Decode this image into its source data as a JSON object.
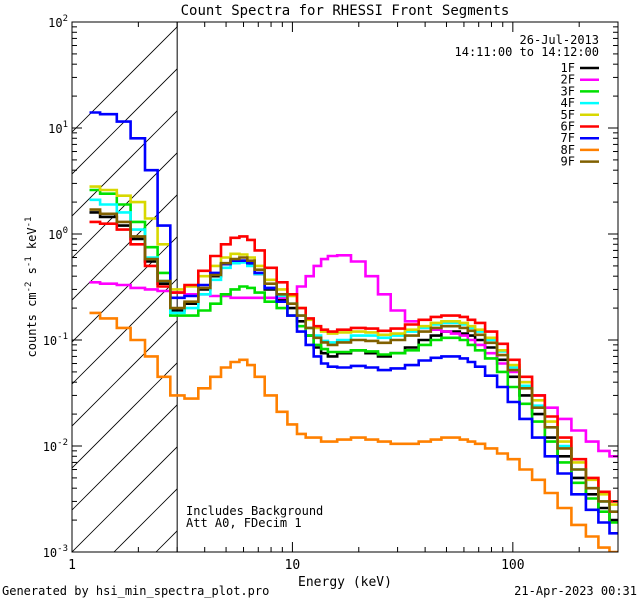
{
  "chart_data": {
    "type": "line",
    "title": "Count Spectra for RHESSI Front Segments",
    "xlabel": "Energy (keV)",
    "ylabel": "counts cm^-2 s^-1 keV^-1",
    "ylabel_parts": {
      "a": "counts cm",
      "b": "-2",
      "c": " s",
      "d": "-1",
      "e": " keV",
      "f": "-1"
    },
    "xscale": "log",
    "yscale": "log",
    "xlim": [
      1,
      300
    ],
    "ylim": [
      0.001,
      100
    ],
    "x_ticks": [
      {
        "value": 1,
        "label": "1"
      },
      {
        "value": 10,
        "label": "10"
      },
      {
        "value": 100,
        "label": "100"
      }
    ],
    "y_ticks": [
      {
        "value": 0.001,
        "base": "10",
        "exp": "-3"
      },
      {
        "value": 0.01,
        "base": "10",
        "exp": "-2"
      },
      {
        "value": 0.1,
        "base": "10",
        "exp": "-1"
      },
      {
        "value": 1,
        "base": "10",
        "exp": "0"
      },
      {
        "value": 10,
        "base": "10",
        "exp": "1"
      },
      {
        "value": 100,
        "base": "10",
        "exp": "2"
      }
    ],
    "date": "26-Jul-2013",
    "time_range": "14:11:00 to 14:12:00",
    "hatched_region": [
      1,
      3
    ],
    "annotations": [
      "Includes Background",
      "Att A0, FDecim 1"
    ],
    "legend_position": "top-right",
    "energies": [
      1.2,
      1.5,
      1.7,
      2.0,
      2.3,
      2.6,
      3.0,
      3.5,
      4.0,
      4.5,
      5.0,
      5.5,
      6.0,
      6.5,
      7.0,
      8.0,
      9.0,
      10.0,
      11.0,
      12.0,
      13.0,
      14.0,
      15.0,
      17.0,
      20.0,
      23.0,
      26.0,
      30.0,
      35.0,
      40.0,
      45.0,
      50.0,
      55.0,
      60.0,
      65.0,
      70.0,
      80.0,
      90.0,
      100.0,
      115.0,
      130.0,
      150.0,
      170.0,
      200.0,
      230.0,
      260.0,
      290.0
    ],
    "series": [
      {
        "name": "1F",
        "color": "#000000",
        "values": [
          1.6,
          1.45,
          1.2,
          0.9,
          0.55,
          0.34,
          0.19,
          0.22,
          0.3,
          0.4,
          0.52,
          0.56,
          0.56,
          0.52,
          0.42,
          0.3,
          0.24,
          0.2,
          0.15,
          0.11,
          0.085,
          0.075,
          0.07,
          0.075,
          0.08,
          0.075,
          0.07,
          0.075,
          0.085,
          0.1,
          0.11,
          0.12,
          0.12,
          0.115,
          0.11,
          0.1,
          0.085,
          0.065,
          0.045,
          0.03,
          0.02,
          0.012,
          0.008,
          0.005,
          0.0035,
          0.0026,
          0.002
        ]
      },
      {
        "name": "2F",
        "color": "#ff00ff",
        "values": [
          0.35,
          0.34,
          0.33,
          0.31,
          0.3,
          0.29,
          0.28,
          0.27,
          0.27,
          0.26,
          0.26,
          0.25,
          0.25,
          0.25,
          0.25,
          0.25,
          0.25,
          0.27,
          0.32,
          0.4,
          0.5,
          0.58,
          0.62,
          0.63,
          0.55,
          0.4,
          0.27,
          0.19,
          0.15,
          0.13,
          0.125,
          0.12,
          0.115,
          0.11,
          0.1,
          0.09,
          0.075,
          0.06,
          0.05,
          0.04,
          0.03,
          0.023,
          0.018,
          0.014,
          0.011,
          0.009,
          0.008
        ]
      },
      {
        "name": "3F",
        "color": "#00e000",
        "values": [
          2.6,
          2.4,
          1.9,
          1.3,
          0.75,
          0.43,
          0.17,
          0.17,
          0.19,
          0.22,
          0.27,
          0.3,
          0.32,
          0.31,
          0.28,
          0.23,
          0.2,
          0.17,
          0.135,
          0.11,
          0.09,
          0.082,
          0.077,
          0.077,
          0.08,
          0.078,
          0.073,
          0.075,
          0.08,
          0.09,
          0.1,
          0.105,
          0.105,
          0.1,
          0.09,
          0.08,
          0.067,
          0.05,
          0.036,
          0.025,
          0.017,
          0.011,
          0.007,
          0.0045,
          0.0032,
          0.0024,
          0.0019
        ]
      },
      {
        "name": "4F",
        "color": "#00ffff",
        "values": [
          2.1,
          1.9,
          1.6,
          1.1,
          0.6,
          0.36,
          0.18,
          0.2,
          0.27,
          0.37,
          0.48,
          0.53,
          0.54,
          0.5,
          0.42,
          0.31,
          0.26,
          0.22,
          0.17,
          0.13,
          0.11,
          0.098,
          0.095,
          0.1,
          0.11,
          0.11,
          0.105,
          0.11,
          0.12,
          0.13,
          0.14,
          0.145,
          0.145,
          0.14,
          0.13,
          0.12,
          0.1,
          0.078,
          0.055,
          0.037,
          0.024,
          0.015,
          0.01,
          0.006,
          0.004,
          0.003,
          0.0024
        ]
      },
      {
        "name": "5F",
        "color": "#d8d800",
        "values": [
          2.8,
          2.6,
          2.3,
          2.0,
          1.4,
          0.8,
          0.3,
          0.32,
          0.4,
          0.5,
          0.6,
          0.65,
          0.64,
          0.6,
          0.5,
          0.37,
          0.3,
          0.26,
          0.2,
          0.155,
          0.13,
          0.12,
          0.115,
          0.118,
          0.12,
          0.118,
          0.112,
          0.115,
          0.125,
          0.135,
          0.145,
          0.15,
          0.15,
          0.145,
          0.135,
          0.125,
          0.105,
          0.08,
          0.058,
          0.04,
          0.027,
          0.017,
          0.011,
          0.007,
          0.0048,
          0.0035,
          0.0028
        ]
      },
      {
        "name": "6F",
        "color": "#ff0000",
        "values": [
          1.3,
          1.25,
          1.1,
          0.8,
          0.5,
          0.32,
          0.28,
          0.33,
          0.45,
          0.62,
          0.8,
          0.92,
          0.95,
          0.88,
          0.7,
          0.48,
          0.35,
          0.27,
          0.2,
          0.16,
          0.135,
          0.125,
          0.12,
          0.125,
          0.13,
          0.128,
          0.122,
          0.128,
          0.14,
          0.155,
          0.165,
          0.17,
          0.17,
          0.165,
          0.155,
          0.145,
          0.12,
          0.092,
          0.065,
          0.045,
          0.03,
          0.019,
          0.012,
          0.0075,
          0.005,
          0.0037,
          0.003
        ]
      },
      {
        "name": "7F",
        "color": "#0000ff",
        "values": [
          14.0,
          13.5,
          11.5,
          8.0,
          4.0,
          1.2,
          0.25,
          0.26,
          0.33,
          0.43,
          0.52,
          0.56,
          0.56,
          0.53,
          0.43,
          0.31,
          0.23,
          0.17,
          0.12,
          0.09,
          0.07,
          0.06,
          0.056,
          0.055,
          0.057,
          0.055,
          0.052,
          0.054,
          0.058,
          0.064,
          0.068,
          0.07,
          0.07,
          0.067,
          0.062,
          0.056,
          0.046,
          0.036,
          0.026,
          0.018,
          0.012,
          0.008,
          0.0055,
          0.0035,
          0.0025,
          0.0019,
          0.0015
        ]
      },
      {
        "name": "8F",
        "color": "#ff8000",
        "values": [
          0.18,
          0.16,
          0.13,
          0.1,
          0.07,
          0.045,
          0.03,
          0.028,
          0.035,
          0.045,
          0.055,
          0.062,
          0.065,
          0.058,
          0.045,
          0.03,
          0.021,
          0.016,
          0.013,
          0.012,
          0.012,
          0.011,
          0.011,
          0.0115,
          0.012,
          0.0115,
          0.011,
          0.0105,
          0.0105,
          0.011,
          0.0115,
          0.012,
          0.012,
          0.0115,
          0.011,
          0.0105,
          0.0095,
          0.0085,
          0.0075,
          0.006,
          0.0048,
          0.0036,
          0.0026,
          0.0018,
          0.0014,
          0.0011,
          0.001
        ]
      },
      {
        "name": "9F",
        "color": "#806000",
        "values": [
          1.7,
          1.55,
          1.3,
          0.95,
          0.58,
          0.36,
          0.2,
          0.23,
          0.31,
          0.41,
          0.53,
          0.58,
          0.6,
          0.56,
          0.46,
          0.34,
          0.27,
          0.22,
          0.17,
          0.13,
          0.105,
          0.095,
          0.09,
          0.095,
          0.1,
          0.098,
          0.094,
          0.1,
          0.11,
          0.12,
          0.13,
          0.135,
          0.135,
          0.13,
          0.122,
          0.112,
          0.094,
          0.072,
          0.052,
          0.035,
          0.023,
          0.015,
          0.0095,
          0.006,
          0.004,
          0.003,
          0.0024
        ]
      }
    ]
  },
  "footer": {
    "generated_by": "Generated by hsi_min_spectra_plot.pro",
    "timestamp": "21-Apr-2023 00:31"
  }
}
